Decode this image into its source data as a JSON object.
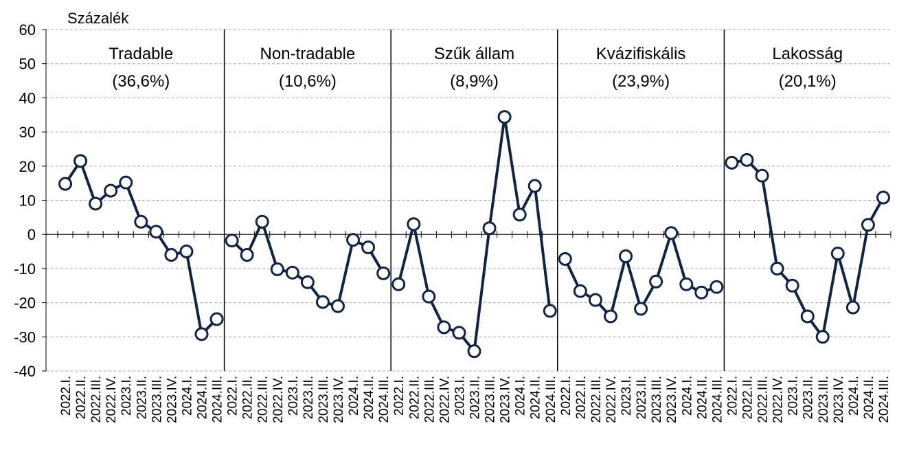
{
  "chart_data": {
    "type": "line",
    "y_label": "Százalék",
    "ylim": [
      -40,
      60
    ],
    "yticks": [
      -40,
      -30,
      -20,
      -10,
      0,
      10,
      20,
      30,
      40,
      50,
      60
    ],
    "grid": true,
    "color": "#0f2447",
    "categories": [
      "2022.I.",
      "2022.II.",
      "2022.III.",
      "2022.IV.",
      "2023.I.",
      "2023.II.",
      "2023.III.",
      "2023.IV.",
      "2024.I.",
      "2024.II.",
      "2024.III."
    ],
    "series": [
      {
        "name": "Tradable",
        "share": "(36,6%)",
        "values": [
          14.8,
          21.5,
          9,
          12.8,
          15.2,
          3.7,
          0.8,
          -6,
          -5,
          -29.2,
          -24.8
        ]
      },
      {
        "name": "Non-tradable",
        "share": "(10,6%)",
        "values": [
          -1.8,
          -6,
          3.7,
          -10.2,
          -11.2,
          -14,
          -19.8,
          -21,
          -1.6,
          -3.8,
          -11.4
        ]
      },
      {
        "name": "Szűk állam",
        "share": "(8,9%)",
        "values": [
          -14.6,
          3,
          -18.2,
          -27.2,
          -28.8,
          -34.2,
          1.8,
          34.4,
          5.8,
          14.2,
          -22.4
        ]
      },
      {
        "name": "Kvázifiskális",
        "share": "(23,9%)",
        "values": [
          -7.2,
          -16.6,
          -19.2,
          -24,
          -6.4,
          -21.8,
          -13.8,
          0.4,
          -14.6,
          -17,
          -15.4
        ]
      },
      {
        "name": "Lakosság",
        "share": "(20,1%)",
        "values": [
          21,
          21.8,
          17.2,
          -10,
          -15,
          -24,
          -30,
          -5.6,
          -21.4,
          2.8,
          10.8
        ]
      }
    ]
  }
}
